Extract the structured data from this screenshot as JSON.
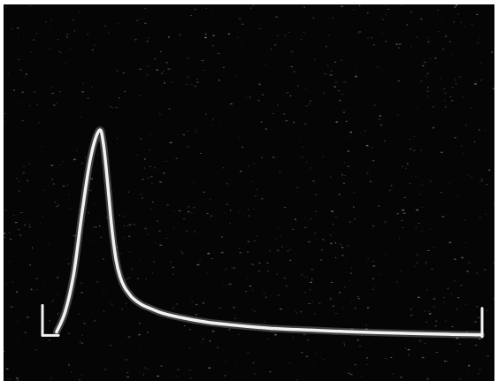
{
  "chart_data": {
    "type": "line",
    "title": "",
    "xlabel": "",
    "ylabel": "",
    "grid": false,
    "legend": "none",
    "background_color": "#050505",
    "trace_color": "#f2f2f2",
    "xlim": [
      0,
      100
    ],
    "ylim": [
      0,
      100
    ],
    "series": [
      {
        "x": [
          0,
          2,
          4,
          6,
          8,
          10,
          11,
          12,
          13,
          14,
          15,
          16,
          17,
          18,
          20,
          22,
          25,
          30,
          35,
          40,
          50,
          60,
          70,
          80,
          90,
          100
        ],
        "y": [
          2,
          10,
          25,
          50,
          72,
          83,
          78,
          62,
          44,
          31,
          24,
          20,
          17.5,
          15.5,
          13,
          11.5,
          9.5,
          7.5,
          6,
          5,
          3.5,
          2.7,
          2,
          1.5,
          1.1,
          0.8
        ]
      }
    ]
  }
}
